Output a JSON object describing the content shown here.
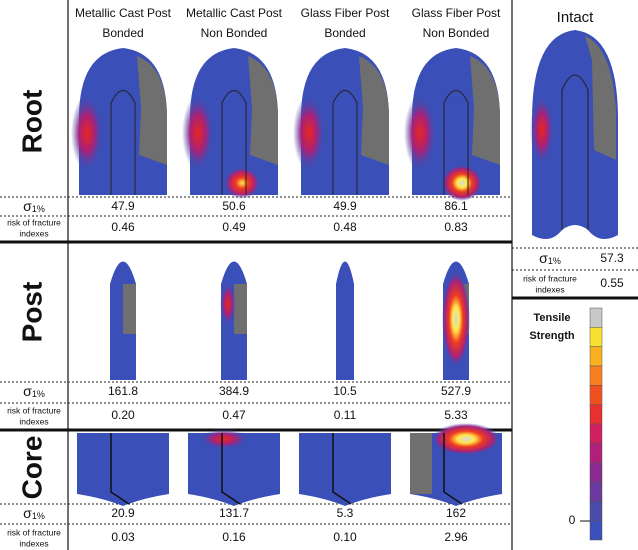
{
  "columns": [
    {
      "line1": "Metallic Cast Post",
      "line2": "Bonded"
    },
    {
      "line1": "Metallic Cast Post",
      "line2": "Non Bonded"
    },
    {
      "line1": "Glass Fiber Post",
      "line2": "Bonded"
    },
    {
      "line1": "Glass Fiber Post",
      "line2": "Non Bonded"
    }
  ],
  "metric_labels": {
    "sigma": {
      "symbol": "σ",
      "subscript": "1%"
    },
    "risk": {
      "line1": "risk of fracture",
      "line2": "indexes"
    }
  },
  "sections": [
    {
      "label": "Root",
      "sigma": [
        "47.9",
        "50.6",
        "49.9",
        "86.1"
      ],
      "risk": [
        "0.46",
        "0.49",
        "0.48",
        "0.83"
      ]
    },
    {
      "label": "Post",
      "sigma": [
        "161.8",
        "384.9",
        "10.5",
        "527.9"
      ],
      "risk": [
        "0.20",
        "0.47",
        "0.11",
        "5.33"
      ]
    },
    {
      "label": "Core",
      "sigma": [
        "20.9",
        "131.7",
        "5.3",
        "162"
      ],
      "risk": [
        "0.03",
        "0.16",
        "0.10",
        "2.96"
      ]
    }
  ],
  "intact": {
    "title": "Intact",
    "sigma": "57.3",
    "risk": "0.55"
  },
  "scale": {
    "line1": "Tensile",
    "line2": "Strength",
    "zero": "0"
  }
}
